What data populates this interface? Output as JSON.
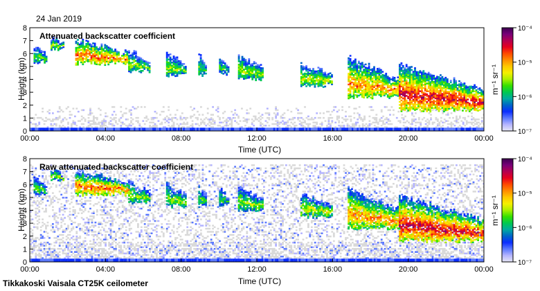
{
  "date_label": "24 Jan 2019",
  "footer_label": "Tikkakoski Vaisala CT25K ceilometer",
  "colormap": [
    "#e6e6f5",
    "#b4b4ff",
    "#5a78ff",
    "#0a2dff",
    "#0064c8",
    "#00aaa0",
    "#00c850",
    "#34e000",
    "#aaf000",
    "#f5f000",
    "#ffc800",
    "#ff8c00",
    "#ff4a00",
    "#e6001e",
    "#b40050",
    "#780078",
    "#3c0050"
  ],
  "chart_data": [
    {
      "type": "heatmap",
      "title": "Attenuated backscatter coefficient",
      "xlabel": "Time (UTC)",
      "ylabel": "Height (km)",
      "xlim": [
        0,
        24
      ],
      "ylim": [
        0,
        8
      ],
      "x_ticks": [
        "00:00",
        "04:00",
        "08:00",
        "12:00",
        "16:00",
        "20:00",
        "00:00"
      ],
      "y_ticks": [
        "0",
        "1",
        "2",
        "3",
        "4",
        "5",
        "6",
        "7",
        "8"
      ],
      "colorbar": {
        "label": "m⁻¹ sr⁻¹",
        "scale": "log",
        "range": [
          1e-07,
          0.0001
        ],
        "ticks": [
          "10⁻⁷",
          "10⁻⁶",
          "10⁻⁵",
          "10⁻⁴"
        ]
      },
      "noise_level": "low",
      "cloud_layers": [
        {
          "t0": 0.2,
          "t1": 0.9,
          "top": 6.6,
          "base": 5.3,
          "peak": 0.45
        },
        {
          "t0": 1.1,
          "t1": 1.8,
          "top": 7.2,
          "base": 6.3,
          "peak": 0.5
        },
        {
          "t0": 2.4,
          "t1": 5.2,
          "top": 7.1,
          "base": 5.2,
          "peak": 0.75
        },
        {
          "t0": 5.2,
          "t1": 6.3,
          "top": 6.2,
          "base": 4.6,
          "peak": 0.5
        },
        {
          "t0": 7.2,
          "t1": 8.2,
          "top": 6.1,
          "base": 4.3,
          "peak": 0.5
        },
        {
          "t0": 8.9,
          "t1": 9.3,
          "top": 5.9,
          "base": 4.3,
          "peak": 0.45
        },
        {
          "t0": 10.0,
          "t1": 10.5,
          "top": 5.6,
          "base": 4.4,
          "peak": 0.4
        },
        {
          "t0": 11.0,
          "t1": 12.3,
          "top": 5.8,
          "base": 4.0,
          "peak": 0.5
        },
        {
          "t0": 14.3,
          "t1": 16.0,
          "top": 5.2,
          "base": 3.5,
          "peak": 0.55
        },
        {
          "t0": 16.8,
          "t1": 19.5,
          "top": 5.7,
          "base": 2.6,
          "peak": 0.7
        },
        {
          "t0": 19.5,
          "t1": 24.0,
          "top": 5.1,
          "base": 1.6,
          "peak": 0.85
        }
      ]
    },
    {
      "type": "heatmap",
      "title": "Raw attenuated backscatter coefficient",
      "xlabel": "Time (UTC)",
      "ylabel": "Height (km)",
      "xlim": [
        0,
        24
      ],
      "ylim": [
        0,
        8
      ],
      "x_ticks": [
        "00:00",
        "04:00",
        "08:00",
        "12:00",
        "16:00",
        "20:00",
        "00:00"
      ],
      "y_ticks": [
        "0",
        "1",
        "2",
        "3",
        "4",
        "5",
        "6",
        "7",
        "8"
      ],
      "colorbar": {
        "label": "m⁻¹ sr⁻¹",
        "scale": "log",
        "range": [
          1e-07,
          0.0001
        ],
        "ticks": [
          "10⁻⁷",
          "10⁻⁶",
          "10⁻⁵",
          "10⁻⁴"
        ]
      },
      "noise_level": "high",
      "cloud_layers": [
        {
          "t0": 0.2,
          "t1": 0.9,
          "top": 6.6,
          "base": 5.3,
          "peak": 0.45
        },
        {
          "t0": 1.1,
          "t1": 1.8,
          "top": 7.2,
          "base": 6.3,
          "peak": 0.5
        },
        {
          "t0": 2.4,
          "t1": 5.2,
          "top": 7.1,
          "base": 5.2,
          "peak": 0.75
        },
        {
          "t0": 5.2,
          "t1": 6.3,
          "top": 6.2,
          "base": 4.6,
          "peak": 0.5
        },
        {
          "t0": 7.2,
          "t1": 8.2,
          "top": 6.1,
          "base": 4.3,
          "peak": 0.5
        },
        {
          "t0": 8.9,
          "t1": 9.3,
          "top": 5.9,
          "base": 4.3,
          "peak": 0.45
        },
        {
          "t0": 10.0,
          "t1": 10.5,
          "top": 5.6,
          "base": 4.4,
          "peak": 0.4
        },
        {
          "t0": 11.0,
          "t1": 12.3,
          "top": 5.8,
          "base": 4.0,
          "peak": 0.5
        },
        {
          "t0": 14.3,
          "t1": 16.0,
          "top": 5.2,
          "base": 3.5,
          "peak": 0.55
        },
        {
          "t0": 16.8,
          "t1": 19.5,
          "top": 5.7,
          "base": 2.6,
          "peak": 0.7
        },
        {
          "t0": 19.5,
          "t1": 24.0,
          "top": 5.1,
          "base": 1.6,
          "peak": 0.85
        }
      ]
    }
  ]
}
